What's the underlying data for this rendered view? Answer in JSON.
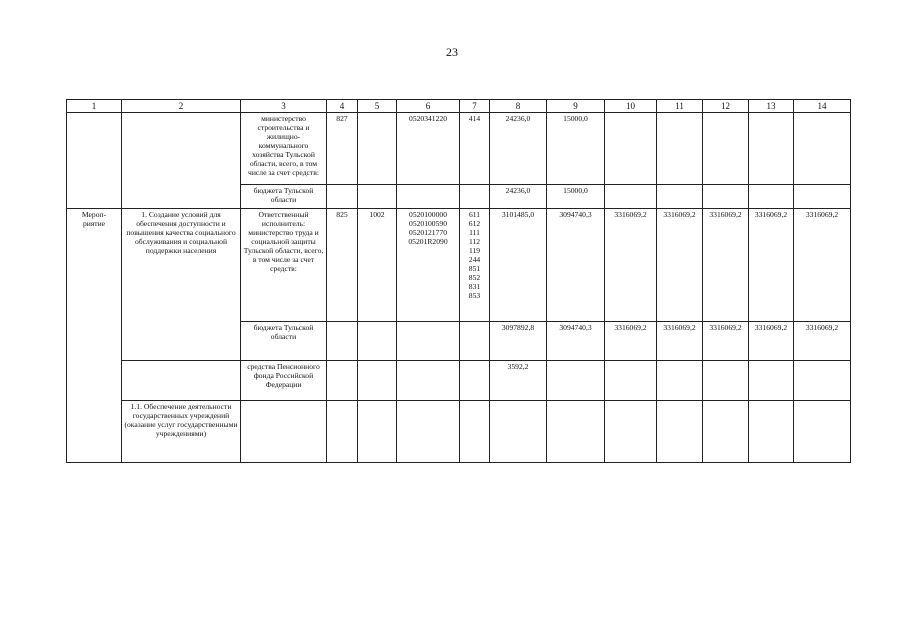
{
  "page_number": "23",
  "headers": [
    "1",
    "2",
    "3",
    "4",
    "5",
    "6",
    "7",
    "8",
    "9",
    "10",
    "11",
    "12",
    "13",
    "14"
  ],
  "rows": {
    "r1": {
      "c3": "министерство строительства и жилищно-коммунального хозяйства Тульской области, всего, в том числе за счет средств:",
      "c4": "827",
      "c5": "",
      "c6": "0520341220",
      "c7": "414",
      "c8": "24236,0",
      "c9": "15000,0",
      "c10": "",
      "c11": "",
      "c12": "",
      "c13": "",
      "c14": ""
    },
    "r2": {
      "c3": "бюджета Тульской области",
      "c8": "24236,0",
      "c9": "15000,0"
    },
    "r3": {
      "c1": "Мероп-\nриятие",
      "c2": "1. Создание условий для обеспечения доступности и повышения качества социального обслуживания и социальной поддержки населения",
      "c3": "Ответственный исполнитель: министерство труда и социальной защиты Тульской области, всего, в том числе за счет средств:",
      "c4": "825",
      "c5": "1002",
      "c6": "0520100000\n0520100590\n0520121770\n05201R2090",
      "c7": "611\n612\n111\n112\n119\n244\n851\n852\n831\n853",
      "c8": "3101485,0",
      "c9": "3094740,3",
      "c10": "3316069,2",
      "c11": "3316069,2",
      "c12": "3316069,2",
      "c13": "3316069,2",
      "c14": "3316069,2"
    },
    "r4": {
      "c3": "бюджета Тульской области",
      "c8": "3097892,8",
      "c9": "3094740,3",
      "c10": "3316069,2",
      "c11": "3316069,2",
      "c12": "3316069,2",
      "c13": "3316069,2",
      "c14": "3316069,2"
    },
    "r5": {
      "c3": "средства Пенсионного фонда Российской Федерации",
      "c8": "3592,2"
    },
    "r6": {
      "c2": "1.1. Обеспечение деятельности государственных учреждений (оказание услуг государственными учреждениями)"
    }
  }
}
